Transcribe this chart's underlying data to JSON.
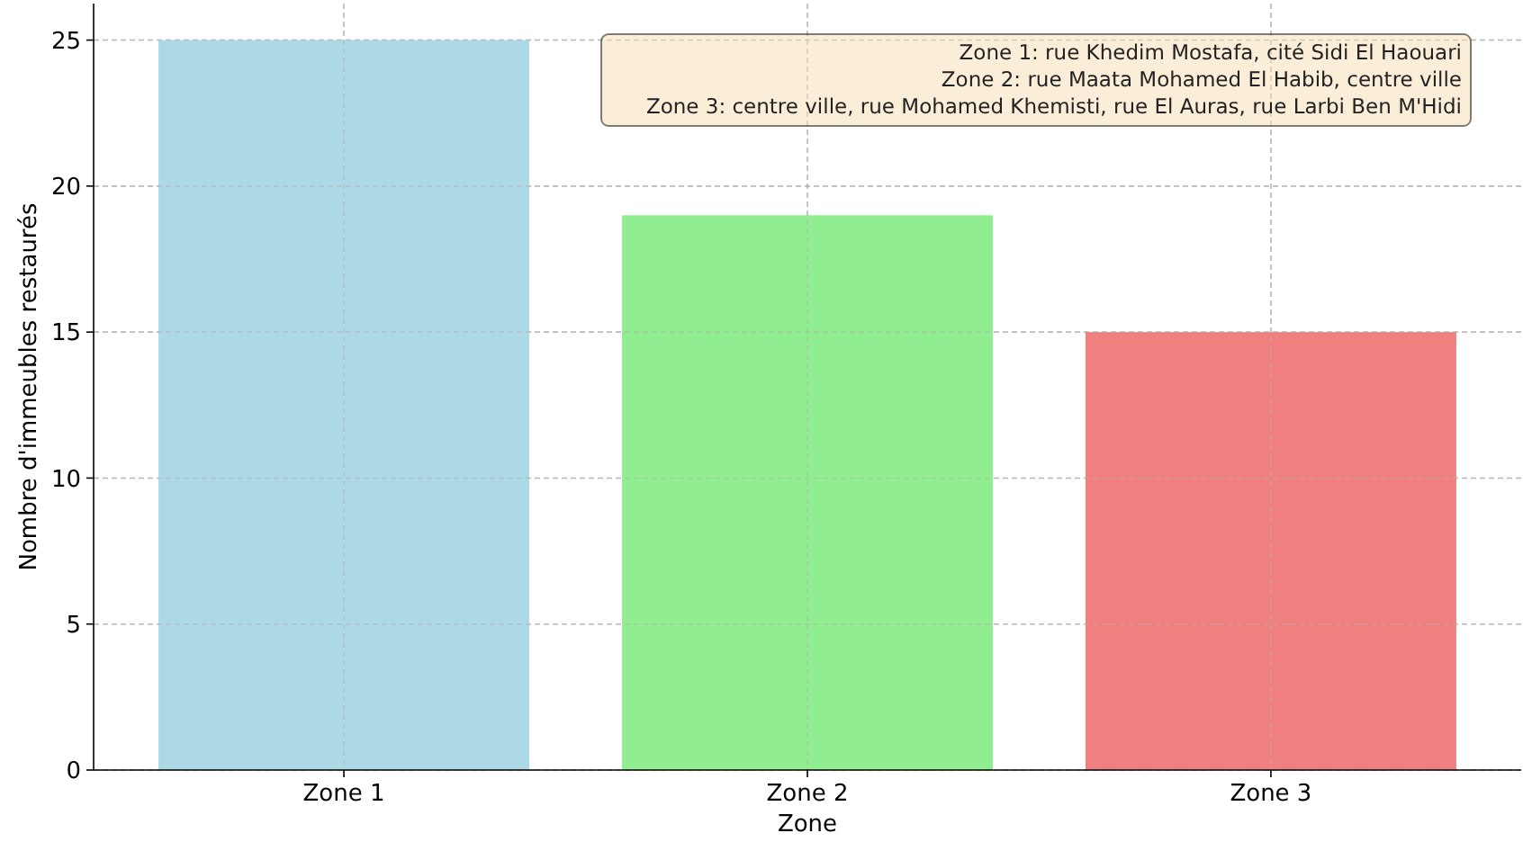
{
  "chart_data": {
    "type": "bar",
    "xlabel": "Zone",
    "ylabel": "Nombre d'immeubles restaurés",
    "categories": [
      "Zone 1",
      "Zone 2",
      "Zone 3"
    ],
    "values": [
      25,
      19,
      15
    ],
    "colors": [
      "#add8e6",
      "#90ee90",
      "#f08080"
    ],
    "ylim": [
      0,
      26.25
    ],
    "yticks": [
      0,
      5,
      10,
      15,
      20,
      25
    ],
    "grid": true,
    "annotations": [
      "Zone 1: rue Khedim Mostafa, cité Sidi El Haouari\nZone 2: rue Maata Mohamed El Habib, centre ville\nZone 3: centre ville, rue Mohamed Khemisti, rue El Auras, rue Larbi Ben M'Hidi"
    ]
  }
}
